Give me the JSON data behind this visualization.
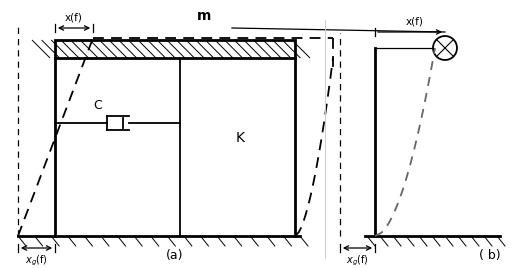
{
  "fig_width": 5.16,
  "fig_height": 2.68,
  "dpi": 100,
  "bg_color": "#ffffff",
  "line_color": "#000000",
  "dashed_color": "#333333",
  "label_a": "(a)",
  "label_b": "( b)",
  "label_m": "m",
  "label_c": "C",
  "label_k": "K",
  "label_xf": "x(f)",
  "label_xgf": "x₉(f)"
}
